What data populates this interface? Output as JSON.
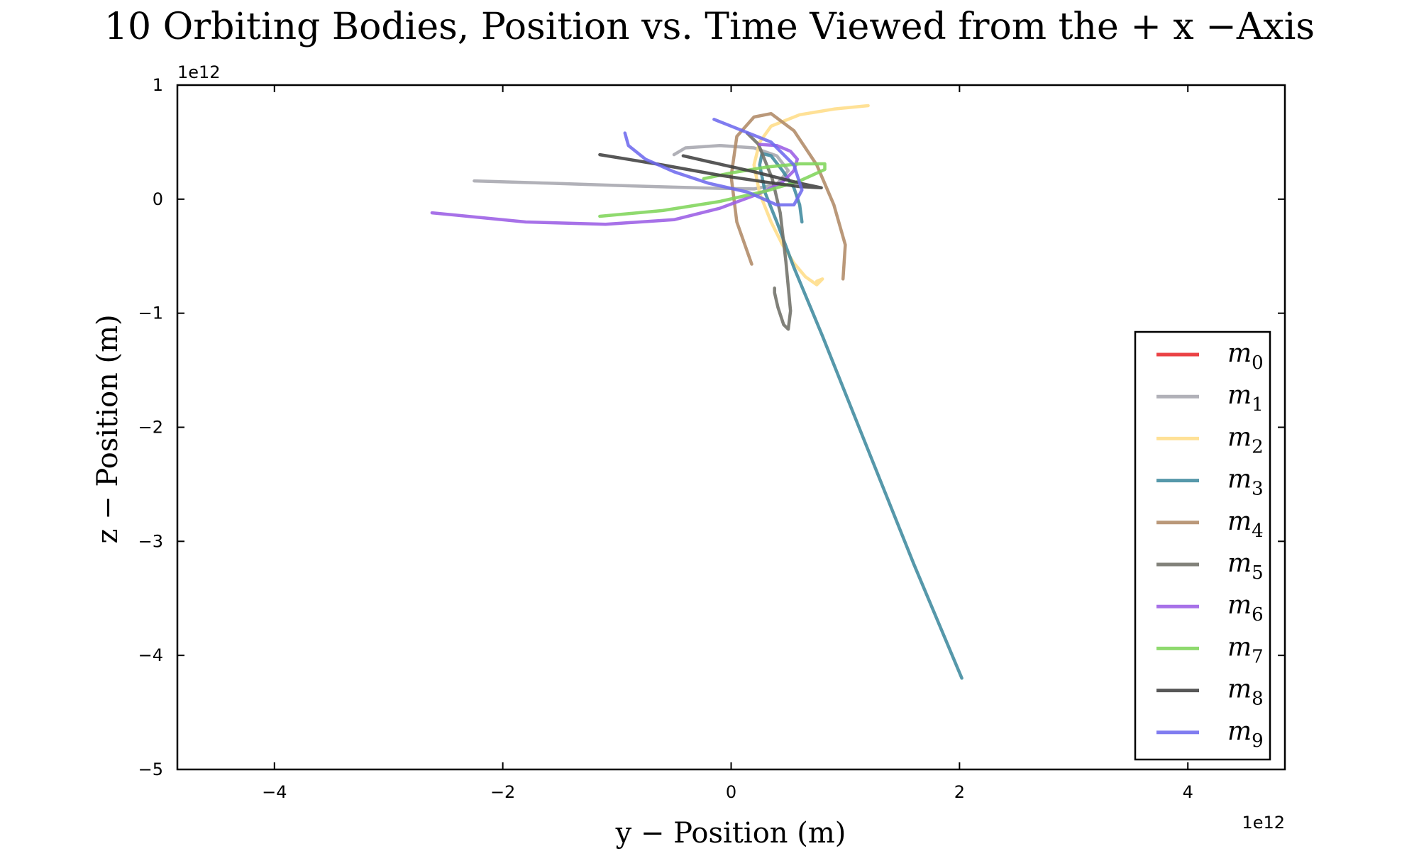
{
  "chart_data": {
    "type": "line",
    "title": "10 Orbiting Bodies, Position vs. Time Viewed from the + x −Axis",
    "xlabel": "y − Position (m)",
    "ylabel": "z − Position (m)",
    "x_offset_label": "1e12",
    "y_offset_label": "1e12",
    "xlim": [
      -4.85,
      4.85
    ],
    "ylim": [
      -5,
      1
    ],
    "xticks": [
      -4,
      -2,
      0,
      2,
      4
    ],
    "xtick_labels": [
      "−4",
      "−2",
      "0",
      "2",
      "4"
    ],
    "yticks": [
      1,
      0,
      -1,
      -2,
      -3,
      -4,
      -5
    ],
    "ytick_labels": [
      "1",
      "0",
      "−1",
      "−2",
      "−3",
      "−4",
      "−5"
    ],
    "grid": false,
    "legend_position": "lower-right",
    "series": [
      {
        "name": "m0",
        "sub": "0",
        "color": "#e8282b",
        "x": [],
        "y": []
      },
      {
        "name": "m1",
        "sub": "1",
        "color": "#a6a6ae",
        "x": [
          -2.25,
          -1.6,
          -1.0,
          -0.5,
          -0.1,
          0.2,
          0.4,
          0.5,
          0.4,
          0.2,
          -0.1,
          -0.4,
          -0.5
        ],
        "y": [
          0.16,
          0.14,
          0.12,
          0.105,
          0.095,
          0.09,
          0.13,
          0.25,
          0.38,
          0.45,
          0.47,
          0.45,
          0.39
        ]
      },
      {
        "name": "m2",
        "sub": "2",
        "color": "#ffdd88",
        "x": [
          1.2,
          0.9,
          0.6,
          0.35,
          0.25,
          0.2,
          0.25,
          0.35,
          0.45,
          0.55,
          0.65,
          0.75,
          0.8,
          0.75
        ],
        "y": [
          0.82,
          0.79,
          0.74,
          0.64,
          0.5,
          0.3,
          0.05,
          -0.2,
          -0.4,
          -0.56,
          -0.68,
          -0.75,
          -0.7,
          -0.72
        ]
      },
      {
        "name": "m3",
        "sub": "3",
        "color": "#3f8a9e",
        "x": [
          0.62,
          0.6,
          0.55,
          0.45,
          0.35,
          0.27,
          0.25,
          0.3,
          0.4,
          0.55,
          0.8,
          1.2,
          1.6,
          2.02
        ],
        "y": [
          -0.2,
          -0.05,
          0.1,
          0.25,
          0.38,
          0.4,
          0.3,
          0.05,
          -0.2,
          -0.6,
          -1.2,
          -2.2,
          -3.2,
          -4.2
        ]
      },
      {
        "name": "m4",
        "sub": "4",
        "color": "#b08a67",
        "x": [
          0.18,
          0.05,
          0.0,
          0.05,
          0.2,
          0.35,
          0.55,
          0.75,
          0.9,
          1.0,
          0.98
        ],
        "y": [
          -0.57,
          -0.2,
          0.2,
          0.55,
          0.72,
          0.75,
          0.6,
          0.3,
          -0.05,
          -0.4,
          -0.7
        ]
      },
      {
        "name": "m5",
        "sub": "5",
        "color": "#707068",
        "x": [
          0.14,
          0.24,
          0.36,
          0.43,
          0.48,
          0.52,
          0.5,
          0.46,
          0.41,
          0.38,
          0.38
        ],
        "y": [
          0.58,
          0.48,
          0.18,
          -0.12,
          -0.55,
          -0.98,
          -1.14,
          -1.1,
          -0.95,
          -0.82,
          -0.78
        ]
      },
      {
        "name": "m6",
        "sub": "6",
        "color": "#9b5de5",
        "x": [
          -2.62,
          -1.8,
          -1.1,
          -0.5,
          -0.1,
          0.25,
          0.45,
          0.55,
          0.58,
          0.52,
          0.4,
          0.25
        ],
        "y": [
          -0.12,
          -0.2,
          -0.22,
          -0.18,
          -0.08,
          0.05,
          0.15,
          0.25,
          0.35,
          0.42,
          0.47,
          0.48
        ]
      },
      {
        "name": "m7",
        "sub": "7",
        "color": "#7fd55a",
        "x": [
          -1.15,
          -0.6,
          -0.1,
          0.3,
          0.6,
          0.82,
          0.82,
          0.6,
          0.3,
          0.0,
          -0.24
        ],
        "y": [
          -0.15,
          -0.1,
          -0.02,
          0.07,
          0.16,
          0.26,
          0.31,
          0.31,
          0.28,
          0.23,
          0.18
        ]
      },
      {
        "name": "m8",
        "sub": "8",
        "color": "#404040",
        "x": [
          -1.15,
          -0.6,
          -0.1,
          0.3,
          0.6,
          0.79,
          0.6,
          0.2,
          -0.2,
          -0.42
        ],
        "y": [
          0.39,
          0.3,
          0.21,
          0.15,
          0.11,
          0.1,
          0.14,
          0.24,
          0.33,
          0.38
        ]
      },
      {
        "name": "m9",
        "sub": "9",
        "color": "#6e6aee",
        "x": [
          -0.93,
          -0.9,
          -0.75,
          -0.5,
          -0.2,
          0.15,
          0.4,
          0.55,
          0.62,
          0.55,
          0.35,
          0.1,
          -0.15
        ],
        "y": [
          0.58,
          0.47,
          0.35,
          0.24,
          0.14,
          0.06,
          -0.05,
          -0.05,
          0.08,
          0.3,
          0.5,
          0.6,
          0.7
        ]
      }
    ]
  }
}
